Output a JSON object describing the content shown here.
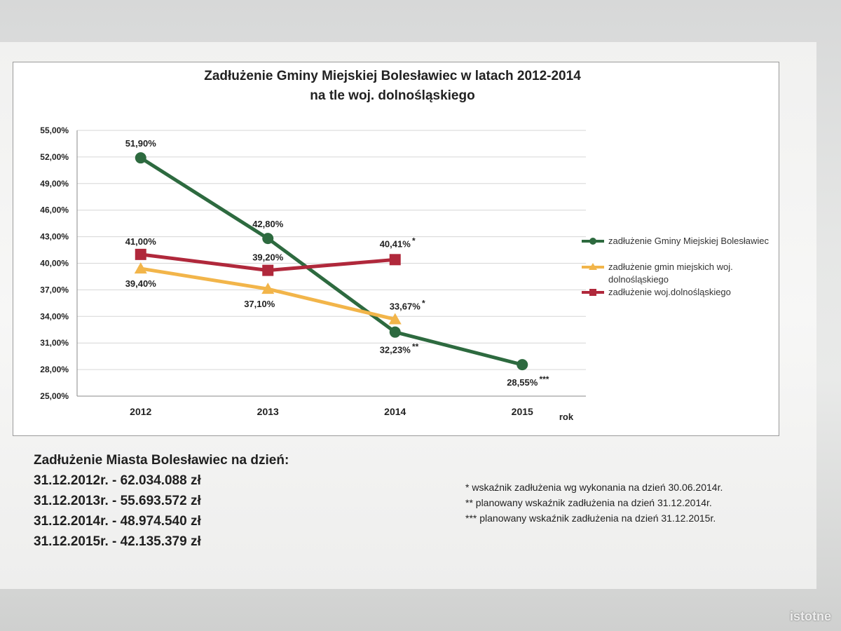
{
  "chart_data": {
    "type": "line",
    "title": "Zadłużenie Gminy Miejskiej Bolesławiec w latach 2012-2014",
    "subtitle": "na tle woj. dolnośląskiego",
    "xlabel": "rok",
    "ylabel": "",
    "categories": [
      "2012",
      "2013",
      "2014",
      "2015"
    ],
    "ylim": [
      25,
      55
    ],
    "yticks": [
      "25,00%",
      "28,00%",
      "31,00%",
      "34,00%",
      "37,00%",
      "40,00%",
      "43,00%",
      "46,00%",
      "49,00%",
      "52,00%",
      "55,00%"
    ],
    "grid": true,
    "legend": "right",
    "series": [
      {
        "name": "zadłużenie Gminy Miejskiej Bolesławiec",
        "color": "#2d6a3f",
        "marker": "circle",
        "values": [
          51.9,
          42.8,
          32.23,
          28.55
        ],
        "labels": [
          "51,90%",
          "42,80%",
          "32,23%",
          "28,55%"
        ],
        "label_suffix": [
          "",
          "",
          "**",
          "***"
        ]
      },
      {
        "name": "zadłużenie gmin miejskich woj. dolnośląskiego",
        "color": "#f2b54a",
        "marker": "triangle",
        "values": [
          39.4,
          37.1,
          33.67,
          null
        ],
        "labels": [
          "39,40%",
          "37,10%",
          "33,67%",
          null
        ],
        "label_suffix": [
          "",
          "",
          "*",
          ""
        ]
      },
      {
        "name": "zadłużenie woj.dolnośląskiego",
        "color": "#b0283b",
        "marker": "square",
        "values": [
          41.0,
          39.2,
          40.41,
          null
        ],
        "labels": [
          "41,00%",
          "39,20%",
          "40,41%",
          null
        ],
        "label_suffix": [
          "",
          "",
          "*",
          ""
        ]
      }
    ]
  },
  "legend_labels": {
    "green": "zadłużenie Gminy Miejskiej Bolesławiec",
    "yellow_line1": "zadłużenie gmin miejskich woj.",
    "yellow_line2": "dolnośląskiego",
    "red": "zadłużenie woj.dolnośląskiego"
  },
  "debt_summary": {
    "heading": "Zadłużenie Miasta Bolesławiec na dzień:",
    "rows": [
      "31.12.2012r. - 62.034.088 zł",
      "31.12.2013r. - 55.693.572 zł",
      "31.12.2014r. - 48.974.540 zł",
      "31.12.2015r. - 42.135.379 zł"
    ]
  },
  "footnotes": [
    "* wskaźnik zadłużenia wg wykonania na dzień 30.06.2014r.",
    "** planowany wskaźnik zadłużenia na dzień 31.12.2014r.",
    "*** planowany wskaźnik zadłużenia na dzień 31.12.2015r."
  ],
  "watermark": "istotne"
}
